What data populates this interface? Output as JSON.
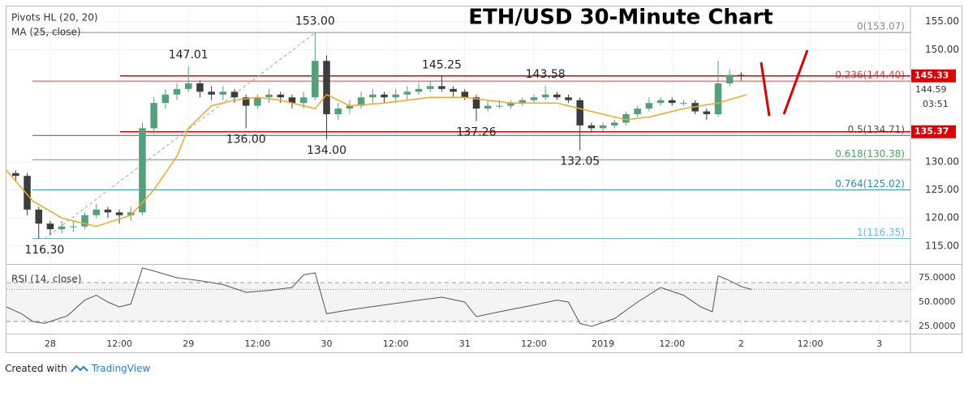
{
  "chart_data": [
    {
      "type": "candlestick",
      "title": "ETH/USD 30-Minute Chart",
      "legend": [
        "Pivots HL (20, 20)",
        "MA (25, close)"
      ],
      "x": [
        -6,
        -4,
        -2,
        0,
        2,
        4,
        6,
        8,
        10,
        12,
        14,
        16,
        18,
        20,
        22,
        24,
        26,
        28,
        30,
        32,
        34,
        36,
        38,
        40,
        42,
        44,
        46,
        48,
        50,
        52,
        54,
        56,
        58,
        60,
        62,
        64,
        66,
        68,
        70,
        72,
        74,
        76,
        78,
        80,
        82,
        84,
        86,
        88,
        90,
        92,
        94,
        96,
        98,
        100,
        102,
        104,
        106,
        108,
        110,
        112,
        114,
        116,
        118,
        120
      ],
      "open": [
        128,
        127.5,
        121.5,
        119,
        118,
        118.5,
        118.5,
        120.5,
        121.5,
        121,
        120.5,
        121,
        136,
        140.5,
        142,
        143,
        144,
        142.5,
        142,
        142.5,
        141.5,
        140,
        141.5,
        142,
        141.5,
        140.5,
        141.5,
        148,
        138.5,
        139.5,
        140,
        141.5,
        142,
        141.5,
        142,
        142.5,
        143,
        143.5,
        143,
        142.5,
        141.5,
        139.5,
        140,
        140,
        140.5,
        141,
        141.5,
        142,
        141.5,
        141,
        136.5,
        136,
        136.5,
        137,
        138.5,
        139.5,
        140.5,
        141,
        140.5,
        140.5,
        139,
        138.5,
        144,
        145.5
      ],
      "high": [
        128.5,
        128,
        122,
        119.5,
        119.5,
        119.5,
        121,
        122.5,
        122,
        121.5,
        122,
        137,
        141.5,
        143,
        144,
        147.01,
        144.5,
        143.5,
        143.5,
        143,
        142,
        142,
        143,
        142.5,
        142,
        142.5,
        153,
        149,
        140.5,
        141,
        142.5,
        143,
        142.5,
        143,
        143.5,
        144,
        144.5,
        145.25,
        143.5,
        143,
        142,
        141,
        141,
        141,
        141.5,
        142,
        143.58,
        142.5,
        142,
        141.5,
        137,
        137,
        137.5,
        139,
        140,
        141.5,
        141.5,
        141.5,
        141,
        141,
        139.5,
        148,
        146.5,
        146
      ],
      "low": [
        126.5,
        120.5,
        116.3,
        117,
        117.2,
        117.5,
        118,
        120,
        120,
        119,
        119.5,
        120.5,
        135,
        139.5,
        141,
        142.5,
        141.5,
        141,
        141,
        140.5,
        136,
        139.5,
        140.5,
        140.5,
        139.5,
        139.5,
        141,
        134,
        137.5,
        138.5,
        139.5,
        140.5,
        140.5,
        140.5,
        141,
        142,
        142.5,
        142.5,
        141.5,
        141,
        137.26,
        139,
        139.5,
        139.5,
        140,
        140.5,
        141,
        141,
        140.5,
        132.05,
        135.5,
        135.5,
        136,
        136.5,
        138,
        139,
        140,
        140,
        140,
        138.5,
        137.5,
        138,
        143.5,
        144.5
      ],
      "close": [
        127.5,
        121.5,
        119,
        118,
        118.5,
        118.5,
        120.5,
        121.5,
        121,
        120.5,
        121,
        136,
        140.5,
        142,
        143,
        144,
        142.5,
        142,
        142.5,
        141.5,
        140,
        141.5,
        142,
        141.5,
        140.5,
        141.5,
        148,
        138.5,
        139.5,
        140,
        141.5,
        142,
        141.5,
        142,
        142.5,
        143,
        143.5,
        143,
        142.5,
        141.5,
        139.5,
        140,
        140,
        140.5,
        141,
        141.5,
        142,
        141.5,
        141,
        136.5,
        136,
        136.5,
        137,
        138.5,
        139.5,
        140.5,
        141,
        140.5,
        140.5,
        139,
        138.5,
        144,
        145.5,
        145.3
      ],
      "up_color": "#53a17a",
      "down_color": "#3d3d3d",
      "xlim": [
        -7.6,
        149.4
      ],
      "ylim": [
        111.8,
        157.7
      ],
      "yticks": [
        {
          "value": 155,
          "label": "155.00"
        },
        {
          "value": 150,
          "label": "150.00"
        },
        {
          "value": 130,
          "label": "130.00"
        },
        {
          "value": 125,
          "label": "125.00"
        },
        {
          "value": 120,
          "label": "120.00"
        },
        {
          "value": 115,
          "label": "115.00"
        }
      ],
      "ma": {
        "name": "MA (25, close)",
        "color": "#f5a623",
        "x": [
          -7.6,
          -3,
          2,
          8,
          14,
          18,
          22,
          24,
          28,
          32,
          36,
          40,
          44,
          46,
          48,
          52,
          58,
          66,
          72,
          80,
          88,
          94,
          100,
          104,
          110,
          116,
          121
        ],
        "values": [
          128.5,
          123,
          120,
          118.5,
          120.5,
          125,
          131,
          136,
          140,
          141,
          141.5,
          141,
          140,
          139.5,
          142,
          140,
          140.5,
          141.5,
          141.5,
          140.5,
          140.5,
          139,
          137.5,
          138,
          139.5,
          140.5,
          142
        ]
      },
      "fib_levels": [
        {
          "label": "0(153.07)",
          "value": 153.07,
          "color": "#8a8a8a"
        },
        {
          "label": "0.236(144.40)",
          "value": 144.4,
          "color": "#e04040"
        },
        {
          "label": "0.5(134.71)",
          "value": 134.71,
          "color": "#555555"
        },
        {
          "label": "0.618(130.38)",
          "value": 130.38,
          "color": "#3fae5a"
        },
        {
          "label": "0.764(125.02)",
          "value": 125.02,
          "color": "#2a8fb0"
        },
        {
          "label": "1(116.35)",
          "value": 116.35,
          "color": "#6bbbe0"
        }
      ],
      "price_tags": [
        {
          "value": 145.33,
          "label": "145.33"
        },
        {
          "value": 135.37,
          "label": "135.37"
        }
      ],
      "tag_color": "#e00000",
      "current_price_label": "144.59",
      "countdown": "03:51",
      "pivots": [
        {
          "x": -1,
          "value": 116.3,
          "label": "116.30",
          "position": "below"
        },
        {
          "x": 24,
          "value": 147.01,
          "label": "147.01",
          "position": "above"
        },
        {
          "x": 34,
          "value": 136,
          "label": "136.00",
          "position": "below"
        },
        {
          "x": 46,
          "value": 153,
          "label": "153.00",
          "position": "above"
        },
        {
          "x": 48,
          "value": 134,
          "label": "134.00",
          "position": "below"
        },
        {
          "x": 68,
          "value": 145.25,
          "label": "145.25",
          "position": "above"
        },
        {
          "x": 74,
          "value": 137.26,
          "label": "137.26",
          "position": "below"
        },
        {
          "x": 86,
          "value": 143.58,
          "label": "143.58",
          "position": "above"
        },
        {
          "x": 92,
          "value": 132.05,
          "label": "132.05",
          "position": "below"
        }
      ]
    },
    {
      "type": "line",
      "name": "RSI (14, close)",
      "color": "#555555",
      "x": [
        -7.6,
        -5,
        -3,
        -1,
        1,
        3,
        6,
        8,
        10,
        12,
        14,
        16,
        18,
        22,
        26,
        30,
        34,
        38,
        42,
        44,
        46,
        48,
        52,
        58,
        64,
        68,
        72,
        74,
        78,
        84,
        88,
        90,
        92,
        94,
        98,
        102,
        106,
        110,
        113,
        115,
        116,
        118,
        120,
        121.8
      ],
      "values": [
        45,
        38,
        30,
        28,
        32,
        36,
        52,
        57,
        50,
        45,
        48,
        85,
        82,
        75,
        72,
        68,
        60,
        62,
        65,
        78,
        80,
        38,
        42,
        47,
        52,
        55,
        50,
        35,
        40,
        47,
        52,
        50,
        28,
        25,
        33,
        50,
        65,
        57,
        45,
        40,
        77,
        72,
        66,
        63
      ],
      "xlim": [
        -7.6,
        149.4
      ],
      "ylim": [
        17.5,
        87.5
      ],
      "yticks": [
        {
          "value": 75,
          "label": "75.0000"
        },
        {
          "value": 50,
          "label": "50.0000"
        },
        {
          "value": 25,
          "label": "25.0000"
        }
      ],
      "bands": [
        70,
        30
      ],
      "xticks": [
        {
          "value": 0,
          "label": "28"
        },
        {
          "value": 12,
          "label": "12:00"
        },
        {
          "value": 24,
          "label": "29"
        },
        {
          "value": 36,
          "label": "12:00"
        },
        {
          "value": 48,
          "label": "30"
        },
        {
          "value": 60,
          "label": "12:00"
        },
        {
          "value": 72,
          "label": "31"
        },
        {
          "value": 84,
          "label": "12:00"
        },
        {
          "value": 96,
          "label": "2019"
        },
        {
          "value": 108,
          "label": "12:00"
        },
        {
          "value": 120,
          "label": "2"
        },
        {
          "value": 132,
          "label": "12:00"
        },
        {
          "value": 144,
          "label": "3"
        }
      ]
    }
  ],
  "footer": {
    "prefix": "Created with",
    "brand": "TradingView"
  }
}
